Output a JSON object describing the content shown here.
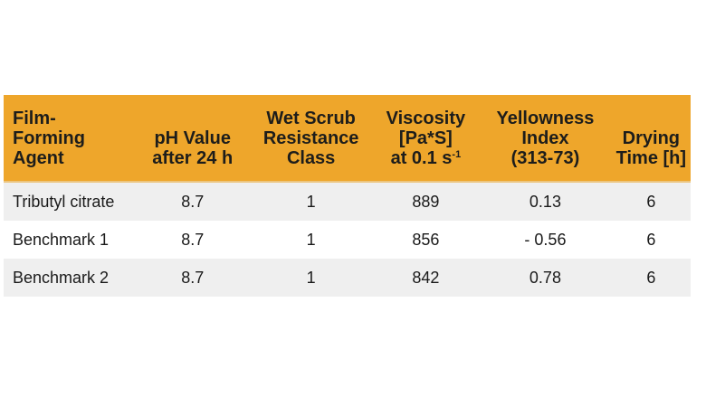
{
  "theme": {
    "page_bg": "#FFFFFF",
    "header_bg": "#EEA62B",
    "header_text": "#1D1D1B",
    "header_edge": "#ECC57F",
    "row_alt_bg": "#EFEFEF",
    "row_bg": "#FFFFFF",
    "body_text": "#1A1A1A"
  },
  "chart_data": {
    "type": "table",
    "columns": [
      {
        "id": "agent",
        "label": "Film-Forming Agent",
        "lines": [
          "Film-",
          "Forming",
          "Agent"
        ]
      },
      {
        "id": "ph",
        "label": "pH Value after 24 h",
        "lines": [
          "pH Value",
          "after 24 h"
        ]
      },
      {
        "id": "wet_scrub",
        "label": "Wet Scrub Resistance Class",
        "lines": [
          "Wet Scrub",
          "Resistance",
          "Class"
        ]
      },
      {
        "id": "viscosity",
        "label": "Viscosity [Pa*S] at 0.1 s-1",
        "lines": [
          "Viscosity",
          "[Pa*S]",
          "at 0.1 s"
        ],
        "sup": "-1"
      },
      {
        "id": "yellowness",
        "label": "Yellowness Index (313-73)",
        "lines": [
          "Yellowness",
          "Index",
          "(313-73)"
        ]
      },
      {
        "id": "drying",
        "label": "Drying Time [h]",
        "lines": [
          "Drying",
          "Time [h]"
        ]
      }
    ],
    "rows": [
      {
        "agent": "Tributyl citrate",
        "ph": "8.7",
        "wet_scrub": "1",
        "viscosity": "889",
        "yellowness": "0.13",
        "drying": "6"
      },
      {
        "agent": "Benchmark 1",
        "ph": "8.7",
        "wet_scrub": "1",
        "viscosity": "856",
        "yellowness": "- 0.56",
        "drying": "6"
      },
      {
        "agent": "Benchmark 2",
        "ph": "8.7",
        "wet_scrub": "1",
        "viscosity": "842",
        "yellowness": "0.78",
        "drying": "6"
      }
    ]
  }
}
